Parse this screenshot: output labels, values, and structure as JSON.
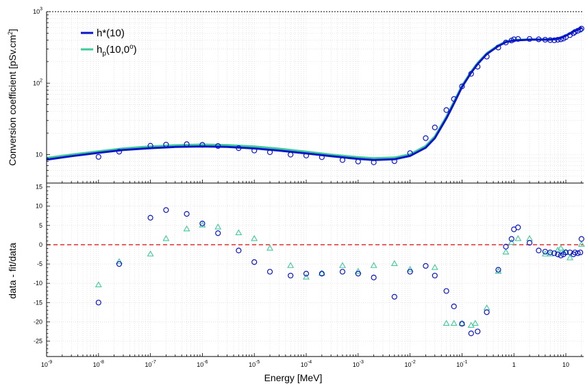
{
  "chart_data": {
    "type": "scatter",
    "xlabel": "Energy [MeV]",
    "x_scale": "log",
    "xlim": [
      1e-09,
      22
    ],
    "x_tick_values": [
      1e-09,
      1e-08,
      1e-07,
      1e-06,
      1e-05,
      0.0001,
      0.001,
      0.01,
      0.1,
      1,
      10
    ],
    "x_tick_mantissa": [
      "10",
      "10",
      "10",
      "10",
      "10",
      "10",
      "10",
      "10",
      "10",
      "1",
      "10"
    ],
    "x_tick_exponent": [
      "-9",
      "-8",
      "-7",
      "-6",
      "-5",
      "-4",
      "-3",
      "-2",
      "-1",
      "",
      ""
    ],
    "grid": true,
    "colors": {
      "h10": "#0a14c8",
      "hp": "#3ec99a",
      "zero_line": "#e01818"
    },
    "top_panel": {
      "ylabel_main": "Conversion coefficient [pSv.cm",
      "ylabel_sup": "2",
      "ylabel_end": "]",
      "y_scale": "log",
      "ylim": [
        4,
        1000
      ],
      "y_tick_values": [
        10,
        100,
        1000
      ],
      "y_tick_mantissa": [
        "10",
        "10",
        "10"
      ],
      "y_tick_exponent": [
        "",
        "2",
        "3"
      ],
      "legend_position": "top-left",
      "legend": {
        "h10_label": "h*(10)",
        "hp_main": "h",
        "hp_sub": "p",
        "hp_args": "(10,0",
        "hp_sup": "o",
        "hp_close": ")"
      },
      "fit_curves": {
        "h10": {
          "x": [
            1e-09,
            3e-09,
            1e-08,
            3e-08,
            1e-07,
            3e-07,
            1e-06,
            3e-06,
            1e-05,
            3e-05,
            0.0001,
            0.0003,
            0.001,
            0.002,
            0.005,
            0.01,
            0.02,
            0.03,
            0.05,
            0.07,
            0.1,
            0.15,
            0.2,
            0.3,
            0.5,
            0.7,
            1,
            2,
            3,
            5,
            7,
            10,
            15,
            20
          ],
          "y": [
            8.5,
            9.5,
            10.6,
            11.6,
            12.3,
            12.8,
            13.0,
            12.8,
            12.2,
            11.4,
            10.4,
            9.5,
            8.7,
            8.4,
            8.6,
            9.6,
            12.5,
            17,
            32,
            52,
            88,
            140,
            185,
            255,
            330,
            375,
            395,
            405,
            405,
            405,
            415,
            460,
            540,
            590
          ]
        },
        "hp": {
          "x": [
            1e-09,
            3e-09,
            1e-08,
            3e-08,
            1e-07,
            3e-07,
            1e-06,
            3e-06,
            1e-05,
            3e-05,
            0.0001,
            0.0003,
            0.001,
            0.002,
            0.005,
            0.01,
            0.02,
            0.03,
            0.05,
            0.07,
            0.1,
            0.15,
            0.2,
            0.3,
            0.5,
            0.7,
            1,
            2,
            3,
            5,
            7,
            10,
            15,
            20
          ],
          "y": [
            9.0,
            10.0,
            11.1,
            12.2,
            13.0,
            13.5,
            13.8,
            13.6,
            13.0,
            12.1,
            11.0,
            10.0,
            9.2,
            8.9,
            9.1,
            10.1,
            13.2,
            18,
            34,
            55,
            92,
            145,
            192,
            262,
            338,
            382,
            402,
            410,
            410,
            410,
            420,
            468,
            548,
            600
          ]
        }
      },
      "data_points": {
        "x": [
          1e-08,
          2.5e-08,
          1e-07,
          2e-07,
          5e-07,
          1e-06,
          2e-06,
          5e-06,
          1e-05,
          2e-05,
          5e-05,
          0.0001,
          0.0002,
          0.0005,
          0.001,
          0.002,
          0.005,
          0.01,
          0.02,
          0.03,
          0.05,
          0.07,
          0.1,
          0.15,
          0.2,
          0.3,
          0.5,
          0.7,
          0.9,
          1,
          1.2,
          2,
          3,
          4,
          5,
          6,
          7,
          8,
          9,
          10,
          12,
          14,
          15,
          17,
          19,
          20
        ],
        "y": [
          9.3,
          11.0,
          13.3,
          13.8,
          14.0,
          13.7,
          13.2,
          12.3,
          11.4,
          10.8,
          10.0,
          9.7,
          9.2,
          8.4,
          8.0,
          7.8,
          8.1,
          10.5,
          17,
          24,
          42,
          60,
          90,
          135,
          170,
          235,
          315,
          370,
          395,
          410,
          415,
          415,
          410,
          405,
          400,
          398,
          405,
          410,
          420,
          440,
          470,
          500,
          520,
          540,
          560,
          580
        ]
      }
    },
    "bottom_panel": {
      "ylabel": "data - fit/data",
      "ylim": [
        -29,
        16
      ],
      "y_ticks": [
        "15",
        "10",
        "5",
        "0",
        "-5",
        "-10",
        "-15",
        "-20",
        "-25"
      ],
      "y_tick_values": [
        15,
        10,
        5,
        0,
        -5,
        -10,
        -15,
        -20,
        -25
      ],
      "zero_line": 0,
      "residuals_h10": {
        "x": [
          1e-08,
          2.5e-08,
          1e-07,
          2e-07,
          5e-07,
          1e-06,
          2e-06,
          5e-06,
          1e-05,
          2e-05,
          5e-05,
          0.0001,
          0.0002,
          0.0005,
          0.001,
          0.002,
          0.005,
          0.01,
          0.02,
          0.03,
          0.05,
          0.07,
          0.1,
          0.15,
          0.2,
          0.3,
          0.5,
          0.7,
          0.9,
          1,
          1.2,
          2,
          3,
          4,
          5,
          6,
          7,
          8,
          9,
          10,
          12,
          14,
          15,
          17,
          19,
          20
        ],
        "y": [
          -15,
          -5,
          7,
          9,
          8,
          5.5,
          3,
          -1.5,
          -4.5,
          -7,
          -8,
          -7.5,
          -7.5,
          -7,
          -7.5,
          -8.5,
          -13.5,
          -7,
          -5.5,
          -8,
          -12,
          -16,
          -20.5,
          -23,
          -22.5,
          -17.5,
          -6.5,
          -0.5,
          1.5,
          4,
          4.5,
          0.5,
          -1.5,
          -1.8,
          -2,
          -2.2,
          -2.5,
          -2.8,
          -2.5,
          -2,
          -2,
          -2.5,
          -2,
          -2.2,
          -2,
          1.5
        ]
      },
      "residuals_hp": {
        "x": [
          1e-08,
          2.5e-08,
          1e-07,
          2e-07,
          5e-07,
          1e-06,
          2e-06,
          5e-06,
          1e-05,
          2e-05,
          5e-05,
          0.0001,
          0.0002,
          0.0005,
          0.001,
          0.002,
          0.005,
          0.01,
          0.03,
          0.05,
          0.07,
          0.1,
          0.15,
          0.18,
          0.3,
          0.5,
          0.7,
          0.9,
          1.2,
          2,
          4,
          5,
          7,
          8,
          9,
          10,
          12,
          20
        ],
        "y": [
          -10.5,
          -4.5,
          -2.5,
          1.5,
          4,
          5,
          4.5,
          3,
          1.5,
          -1,
          -5.5,
          -8.5,
          -7.5,
          -5.5,
          -7,
          -5.5,
          -5,
          -6.5,
          -6,
          -20.5,
          -20.5,
          -20.5,
          -21,
          -20.5,
          -16.5,
          -7,
          -2,
          0.5,
          1.5,
          1.5,
          -2.5,
          -2.5,
          -1.5,
          -1,
          -2,
          -2,
          -3.5,
          0
        ]
      }
    }
  }
}
